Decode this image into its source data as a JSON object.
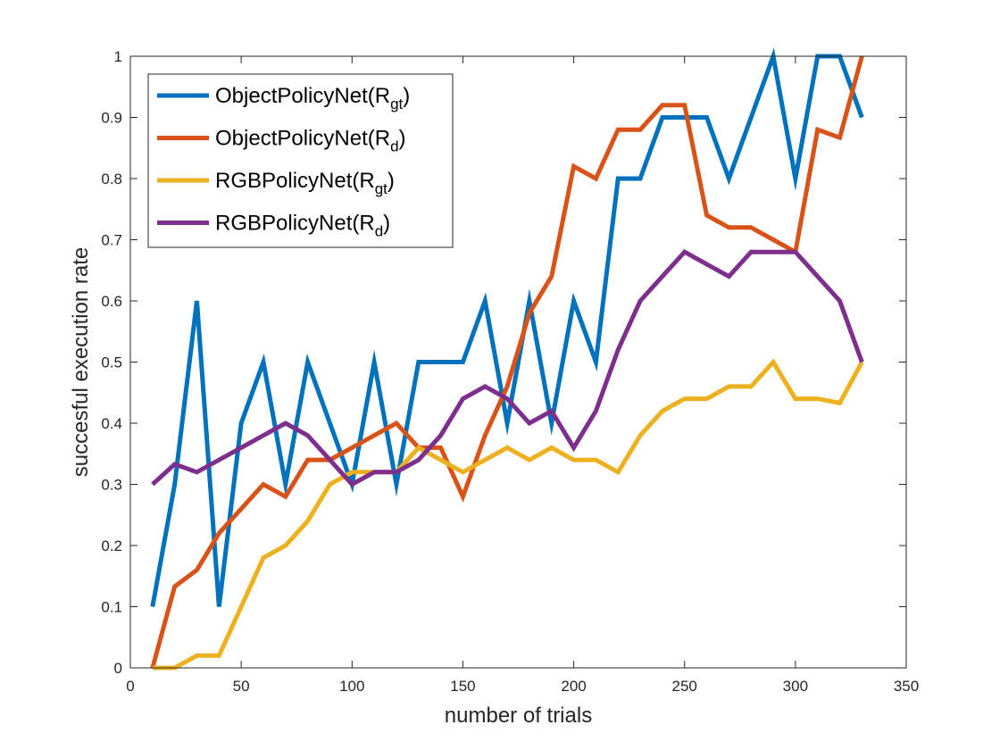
{
  "chart_data": {
    "type": "line",
    "xlabel": "number of trials",
    "ylabel": "succesful execution rate",
    "xlim": [
      0,
      350
    ],
    "ylim": [
      0,
      1
    ],
    "xticks": [
      0,
      50,
      100,
      150,
      200,
      250,
      300,
      350
    ],
    "yticks": [
      0,
      0.1,
      0.2,
      0.3,
      0.4,
      0.5,
      0.6,
      0.7,
      0.8,
      0.9,
      1
    ],
    "x": [
      10,
      20,
      30,
      40,
      50,
      60,
      70,
      80,
      90,
      100,
      110,
      120,
      130,
      140,
      150,
      160,
      170,
      180,
      190,
      200,
      210,
      220,
      230,
      240,
      250,
      260,
      270,
      280,
      290,
      300,
      310,
      320,
      330
    ],
    "grid": false,
    "legend_position": "top-left",
    "series": [
      {
        "name": "ObjectPolicyNet(Rgt)",
        "legend_main": "ObjectPolicyNet(R",
        "legend_sub": "gt",
        "legend_close": ")",
        "color": "#0072BD",
        "values": [
          0.1,
          0.3,
          0.6,
          0.1,
          0.4,
          0.5,
          0.3,
          0.5,
          0.4,
          0.3,
          0.5,
          0.3,
          0.5,
          0.5,
          0.5,
          0.6,
          0.4,
          0.6,
          0.4,
          0.6,
          0.5,
          0.8,
          0.8,
          0.9,
          0.9,
          0.9,
          0.8,
          0.9,
          1.0,
          0.8,
          1.0,
          1.0,
          0.9
        ]
      },
      {
        "name": "ObjectPolicyNet(Rd)",
        "legend_main": "ObjectPolicyNet(R",
        "legend_sub": "d",
        "legend_close": ")",
        "color": "#D95319",
        "values": [
          0.0,
          0.133,
          0.16,
          0.22,
          0.26,
          0.3,
          0.28,
          0.34,
          0.34,
          0.36,
          0.38,
          0.4,
          0.36,
          0.36,
          0.28,
          0.38,
          0.46,
          0.58,
          0.64,
          0.82,
          0.8,
          0.88,
          0.88,
          0.92,
          0.92,
          0.74,
          0.72,
          0.72,
          0.7,
          0.68,
          0.88,
          0.867,
          1.0
        ]
      },
      {
        "name": "RGBPolicyNet(Rgt)",
        "legend_main": "RGBPolicyNet(R",
        "legend_sub": "gt",
        "legend_close": ")",
        "color": "#EDB120",
        "values": [
          0.0,
          0.0,
          0.02,
          0.02,
          0.1,
          0.18,
          0.2,
          0.24,
          0.3,
          0.32,
          0.32,
          0.32,
          0.36,
          0.34,
          0.32,
          0.34,
          0.36,
          0.34,
          0.36,
          0.34,
          0.34,
          0.32,
          0.38,
          0.42,
          0.44,
          0.44,
          0.46,
          0.46,
          0.5,
          0.44,
          0.44,
          0.433,
          0.5
        ]
      },
      {
        "name": "RGBPolicyNet(Rd)",
        "legend_main": "RGBPolicyNet(R",
        "legend_sub": "d",
        "legend_close": ")",
        "color": "#7E2F8E",
        "values": [
          0.3,
          0.333,
          0.32,
          0.34,
          0.36,
          0.38,
          0.4,
          0.38,
          0.34,
          0.3,
          0.32,
          0.32,
          0.34,
          0.38,
          0.44,
          0.46,
          0.44,
          0.4,
          0.42,
          0.36,
          0.42,
          0.52,
          0.6,
          0.64,
          0.68,
          0.66,
          0.64,
          0.68,
          0.68,
          0.68,
          0.64,
          0.6,
          0.5
        ]
      }
    ]
  }
}
